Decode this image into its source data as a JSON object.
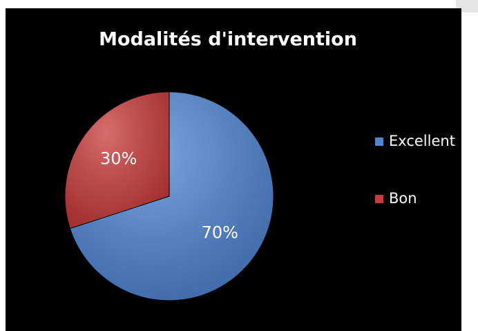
{
  "chart_data": {
    "type": "pie",
    "title": "Modalités d'intervention",
    "categories": [
      "Excellent",
      "Bon"
    ],
    "values": [
      70,
      30
    ],
    "value_labels": [
      "70%",
      "30%"
    ],
    "colors": [
      "#4f86d6",
      "#cc3b3b"
    ],
    "legend": "right"
  }
}
